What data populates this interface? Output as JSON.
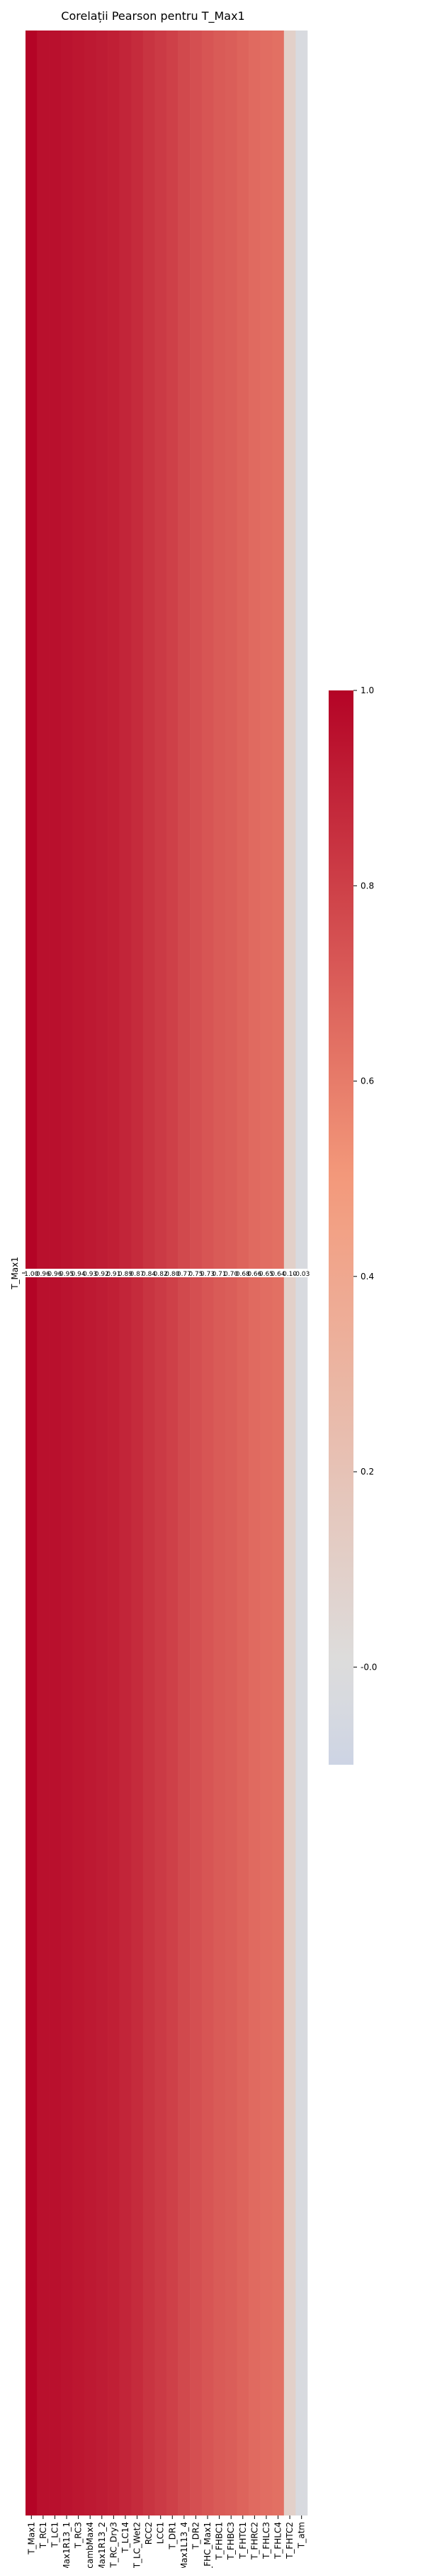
{
  "chart_data": {
    "type": "heatmap",
    "title": "Corelații Pearson pentru T_Max1",
    "y_categories": [
      "T_Max1"
    ],
    "x_categories": [
      "T_Max1",
      "T_RC1",
      "T_LC1",
      "Max1R13_1",
      "T_RC3",
      "cambMax4",
      "Max1R13_2",
      "T_RC_Dry3",
      "T_LC14",
      "T_LC_Wet2",
      "RCC2",
      "LCC1",
      "T_DR1",
      "Max1L13_4",
      "T_DR2",
      "T_FHC_Max1",
      "T_FHBC1",
      "T_FHBC3",
      "T_FHTC1",
      "T_FHRC2",
      "T_FHLC3",
      "T_FHLC4",
      "T_FHTC2",
      "T_atm"
    ],
    "values": [
      1.0,
      0.96,
      0.96,
      0.95,
      0.94,
      0.93,
      0.92,
      0.91,
      0.89,
      0.87,
      0.84,
      0.82,
      0.8,
      0.77,
      0.75,
      0.73,
      0.71,
      0.7,
      0.68,
      0.66,
      0.65,
      0.64,
      0.1,
      -0.03
    ],
    "colorbar": {
      "vmin": -0.1,
      "vmax": 1.0,
      "ticks": [
        -0.0,
        0.2,
        0.4,
        0.6,
        0.8,
        1.0
      ],
      "tick_labels": [
        "-0.0",
        "0.2",
        "0.4",
        "0.6",
        "0.8",
        "1.0"
      ]
    },
    "colormap": "coolwarm",
    "grid": false
  }
}
